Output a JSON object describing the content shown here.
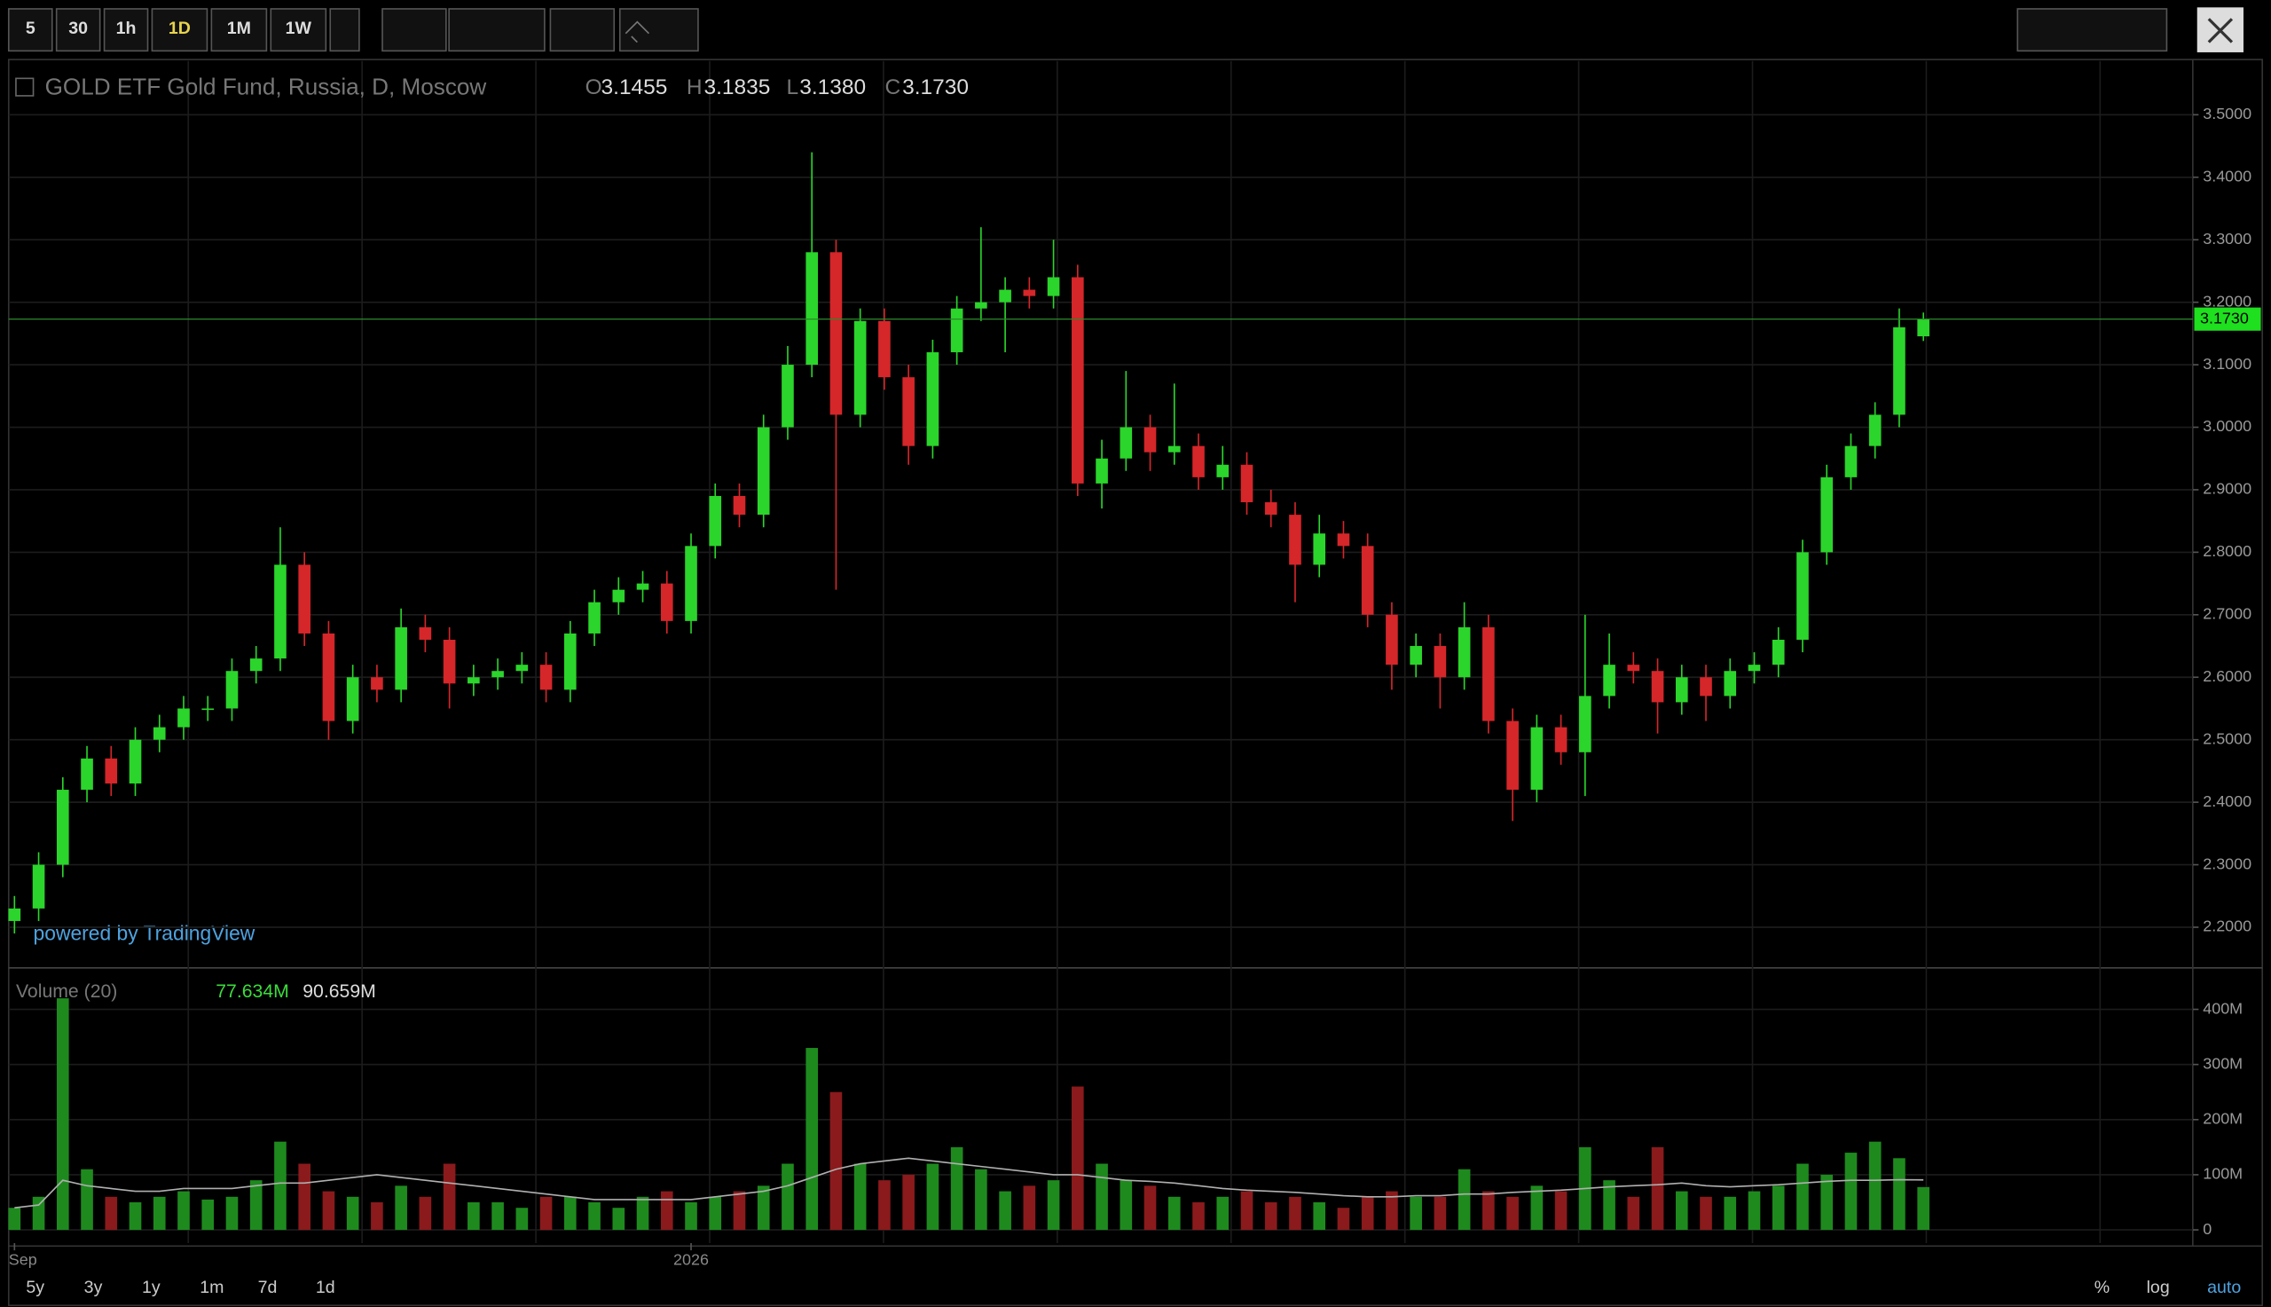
{
  "toolbar": {
    "intervals": [
      "5",
      "30",
      "1h",
      "1D",
      "1M",
      "1W"
    ],
    "active_interval": "1D"
  },
  "header": {
    "open_label": "O",
    "open": "3.1455",
    "high_label": "H",
    "high": "3.1835",
    "low_label": "L",
    "low": "3.1380",
    "close_label": "C",
    "close": "3.1730",
    "watermark": "powered by TradingView"
  },
  "volume_header": {
    "title": "Volume (20)",
    "volume": "77.634M",
    "average": "90.659M"
  },
  "footer": {
    "ranges": [
      "5y",
      "3y",
      "1y",
      "1m",
      "7d",
      "1d"
    ],
    "options": [
      "%",
      "log",
      "auto"
    ]
  },
  "chart_data": [
    {
      "type": "candlestick",
      "title": "GOLD ETF Gold Fund, Russia, D, Moscow",
      "categories": [
        "Sep",
        null,
        null,
        null,
        null,
        null,
        null,
        null,
        null,
        null,
        null,
        null,
        null,
        null,
        null,
        null,
        null,
        null,
        null,
        null,
        null,
        null,
        null,
        null,
        null,
        null,
        null,
        null,
        "2026",
        null,
        null,
        null,
        null,
        null,
        null,
        null,
        null,
        null,
        null,
        null,
        null,
        null,
        null,
        null,
        null,
        null,
        null,
        null,
        null,
        null,
        null,
        null,
        null,
        null,
        null,
        null,
        null,
        null,
        null,
        null,
        null,
        null,
        null,
        null,
        null,
        null,
        null,
        null,
        null,
        null,
        null,
        null,
        null,
        null,
        null,
        null,
        null,
        null,
        null,
        null
      ],
      "open": [
        2.21,
        2.23,
        2.3,
        2.42,
        2.47,
        2.43,
        2.5,
        2.52,
        2.55,
        2.55,
        2.61,
        2.63,
        2.78,
        2.67,
        2.53,
        2.6,
        2.58,
        2.68,
        2.66,
        2.59,
        2.6,
        2.61,
        2.62,
        2.58,
        2.67,
        2.72,
        2.74,
        2.75,
        2.69,
        2.81,
        2.89,
        2.86,
        3.0,
        3.1,
        3.28,
        3.02,
        3.17,
        3.08,
        2.97,
        3.12,
        3.19,
        3.2,
        3.22,
        3.21,
        3.24,
        2.91,
        2.95,
        3.0,
        2.96,
        2.97,
        2.92,
        2.94,
        2.88,
        2.86,
        2.78,
        2.83,
        2.81,
        2.7,
        2.62,
        2.65,
        2.6,
        2.68,
        2.53,
        2.42,
        2.52,
        2.48,
        2.57,
        2.62,
        2.61,
        2.56,
        2.6,
        2.57,
        2.61,
        2.62,
        2.66,
        2.8,
        2.92,
        2.97,
        3.02,
        3.1455
      ],
      "high": [
        2.25,
        2.32,
        2.44,
        2.49,
        2.49,
        2.52,
        2.54,
        2.57,
        2.57,
        2.63,
        2.65,
        2.84,
        2.8,
        2.69,
        2.62,
        2.62,
        2.71,
        2.7,
        2.68,
        2.62,
        2.63,
        2.64,
        2.64,
        2.69,
        2.74,
        2.76,
        2.77,
        2.77,
        2.83,
        2.91,
        2.91,
        3.02,
        3.13,
        3.44,
        3.3,
        3.19,
        3.19,
        3.1,
        3.14,
        3.21,
        3.32,
        3.24,
        3.24,
        3.3,
        3.26,
        2.98,
        3.09,
        3.02,
        3.07,
        2.99,
        2.97,
        2.96,
        2.9,
        2.88,
        2.86,
        2.85,
        2.83,
        2.72,
        2.67,
        2.67,
        2.72,
        2.7,
        2.55,
        2.54,
        2.54,
        2.7,
        2.67,
        2.64,
        2.63,
        2.62,
        2.62,
        2.63,
        2.64,
        2.68,
        2.82,
        2.94,
        2.99,
        3.04,
        3.19,
        3.1835
      ],
      "low": [
        2.19,
        2.21,
        2.28,
        2.4,
        2.41,
        2.41,
        2.48,
        2.5,
        2.53,
        2.53,
        2.59,
        2.61,
        2.65,
        2.5,
        2.51,
        2.56,
        2.56,
        2.64,
        2.55,
        2.57,
        2.58,
        2.59,
        2.56,
        2.56,
        2.65,
        2.7,
        2.72,
        2.67,
        2.67,
        2.79,
        2.84,
        2.84,
        2.98,
        3.08,
        2.74,
        3.0,
        3.06,
        2.94,
        2.95,
        3.1,
        3.17,
        3.12,
        3.19,
        3.19,
        2.89,
        2.87,
        2.93,
        2.93,
        2.94,
        2.9,
        2.9,
        2.86,
        2.84,
        2.72,
        2.76,
        2.79,
        2.68,
        2.58,
        2.6,
        2.55,
        2.58,
        2.51,
        2.37,
        2.4,
        2.46,
        2.41,
        2.55,
        2.59,
        2.51,
        2.54,
        2.53,
        2.55,
        2.59,
        2.6,
        2.64,
        2.78,
        2.9,
        2.95,
        3.0,
        3.138
      ],
      "close": [
        2.23,
        2.3,
        2.42,
        2.47,
        2.43,
        2.5,
        2.52,
        2.55,
        2.55,
        2.61,
        2.63,
        2.78,
        2.67,
        2.53,
        2.6,
        2.58,
        2.68,
        2.66,
        2.59,
        2.6,
        2.61,
        2.62,
        2.58,
        2.67,
        2.72,
        2.74,
        2.75,
        2.69,
        2.81,
        2.89,
        2.86,
        3.0,
        3.1,
        3.28,
        3.02,
        3.17,
        3.08,
        2.97,
        3.12,
        3.19,
        3.2,
        3.22,
        3.21,
        3.24,
        2.91,
        2.95,
        3.0,
        2.96,
        2.97,
        2.92,
        2.94,
        2.88,
        2.86,
        2.78,
        2.83,
        2.81,
        2.7,
        2.62,
        2.65,
        2.6,
        2.68,
        2.53,
        2.42,
        2.52,
        2.48,
        2.57,
        2.62,
        2.61,
        2.56,
        2.6,
        2.57,
        2.61,
        2.62,
        2.66,
        2.8,
        2.92,
        2.97,
        3.02,
        3.16,
        3.173
      ],
      "up_color": "#2bd52b",
      "down_color": "#d5262a",
      "price_tag": {
        "value": 3.173,
        "label": "3.1730"
      },
      "ylim": [
        2.135,
        3.586
      ],
      "yticks": [
        {
          "value": 2.2,
          "label": "2.2000"
        },
        {
          "value": 2.3,
          "label": "2.3000"
        },
        {
          "value": 2.4,
          "label": "2.4000"
        },
        {
          "value": 2.5,
          "label": "2.5000"
        },
        {
          "value": 2.6,
          "label": "2.6000"
        },
        {
          "value": 2.7,
          "label": "2.7000"
        },
        {
          "value": 2.8,
          "label": "2.8000"
        },
        {
          "value": 2.9,
          "label": "2.9000"
        },
        {
          "value": 3.0,
          "label": "3.0000"
        },
        {
          "value": 3.1,
          "label": "3.1000"
        },
        {
          "value": 3.2,
          "label": "3.2000"
        },
        {
          "value": 3.3,
          "label": "3.3000"
        },
        {
          "value": 3.4,
          "label": "3.4000"
        },
        {
          "value": 3.5,
          "label": "3.5000"
        }
      ],
      "grid": true
    },
    {
      "type": "volume",
      "series": [
        {
          "name": "Volume",
          "values": [
            40,
            60,
            420,
            110,
            60,
            50,
            60,
            70,
            55,
            60,
            90,
            160,
            120,
            70,
            60,
            50,
            80,
            60,
            120,
            50,
            50,
            40,
            60,
            60,
            50,
            40,
            60,
            70,
            50,
            60,
            70,
            80,
            120,
            330,
            250,
            120,
            90,
            100,
            120,
            150,
            110,
            70,
            80,
            90,
            260,
            120,
            90,
            80,
            60,
            50,
            60,
            70,
            50,
            60,
            50,
            40,
            60,
            70,
            60,
            60,
            110,
            70,
            60,
            80,
            70,
            150,
            90,
            60,
            150,
            70,
            60,
            60,
            70,
            80,
            120,
            100,
            140,
            160,
            130,
            77.634
          ]
        },
        {
          "name": "MA",
          "color": "#b0b0b0",
          "values": [
            40,
            45,
            90,
            80,
            75,
            70,
            70,
            75,
            75,
            75,
            80,
            85,
            85,
            90,
            95,
            100,
            95,
            90,
            85,
            80,
            75,
            70,
            65,
            60,
            55,
            55,
            55,
            55,
            55,
            60,
            65,
            70,
            80,
            95,
            110,
            120,
            125,
            130,
            125,
            120,
            115,
            110,
            105,
            100,
            100,
            95,
            90,
            88,
            85,
            80,
            75,
            72,
            70,
            68,
            65,
            62,
            60,
            60,
            62,
            62,
            65,
            65,
            68,
            70,
            72,
            75,
            78,
            80,
            82,
            85,
            80,
            78,
            80,
            82,
            85,
            88,
            90,
            90,
            91,
            90.659
          ]
        }
      ],
      "up_color": "#1e8a1e",
      "down_color": "#8a1a1c",
      "ylim": [
        -24,
        470
      ],
      "yticks": [
        {
          "value": 0,
          "label": "0"
        },
        {
          "value": 100,
          "label": "100M"
        },
        {
          "value": 200,
          "label": "200M"
        },
        {
          "value": 300,
          "label": "300M"
        },
        {
          "value": 400,
          "label": "400M"
        }
      ],
      "grid": true
    }
  ]
}
